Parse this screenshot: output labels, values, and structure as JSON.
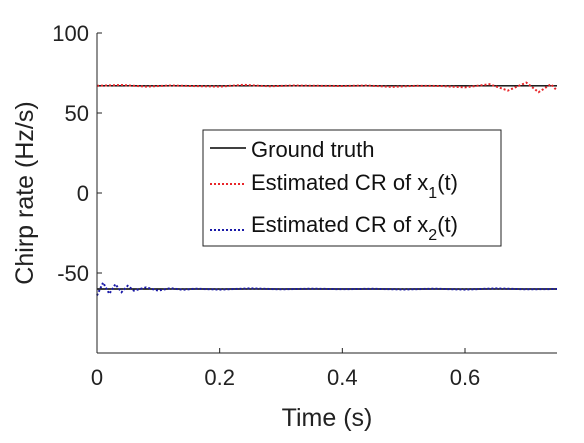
{
  "chart_data": {
    "type": "line",
    "xlabel": "Time (s)",
    "ylabel": "Chirp rate (Hz/s)",
    "xlim": [
      0,
      0.75
    ],
    "ylim": [
      -100,
      100
    ],
    "xticks": [
      0,
      0.2,
      0.4,
      0.6
    ],
    "xtick_labels": [
      "0",
      "0.2",
      "0.4",
      "0.6"
    ],
    "yticks": [
      -50,
      0,
      50,
      100
    ],
    "ytick_labels": [
      "-50",
      "0",
      "50",
      "100"
    ],
    "grid": false,
    "legend_position": "center-right",
    "series": [
      {
        "name": "Ground truth",
        "style": "solid",
        "color": "#000000",
        "x": [
          0,
          0.75
        ],
        "y": [
          67,
          67
        ],
        "x2": [
          0,
          0.75
        ],
        "y2": [
          -60,
          -60
        ]
      },
      {
        "name": "Estimated CR of x1(t)",
        "style": "dotted",
        "color": "#e8262a",
        "x": [
          0,
          0.04,
          0.08,
          0.12,
          0.16,
          0.2,
          0.24,
          0.28,
          0.32,
          0.36,
          0.4,
          0.44,
          0.48,
          0.52,
          0.56,
          0.6,
          0.64,
          0.67,
          0.7,
          0.72,
          0.74,
          0.75
        ],
        "y": [
          67,
          67.5,
          66.5,
          67.2,
          66.8,
          66.5,
          67.6,
          66.7,
          67.2,
          67,
          66.9,
          67.2,
          66.3,
          67,
          66.9,
          66,
          68,
          64,
          69,
          63,
          68,
          64
        ]
      },
      {
        "name": "Estimated CR of x2(t)",
        "style": "dotted",
        "color": "#1a1aa8",
        "x": [
          0,
          0.01,
          0.02,
          0.03,
          0.04,
          0.05,
          0.06,
          0.08,
          0.1,
          0.12,
          0.14,
          0.16,
          0.2,
          0.25,
          0.3,
          0.35,
          0.4,
          0.45,
          0.5,
          0.55,
          0.6,
          0.65,
          0.7,
          0.75
        ],
        "y": [
          -64,
          -56,
          -63,
          -57,
          -62,
          -58,
          -61,
          -59,
          -61,
          -59.5,
          -60.5,
          -59.8,
          -60.4,
          -59.6,
          -60.2,
          -59.8,
          -60.1,
          -59.9,
          -60.3,
          -59.8,
          -60.4,
          -59.6,
          -60.2,
          -60
        ]
      }
    ],
    "legend": [
      {
        "label_prefix": "Ground truth",
        "subscript": "",
        "label_suffix": ""
      },
      {
        "label_prefix": "Estimated CR of x",
        "subscript": "1",
        "label_suffix": "(t)"
      },
      {
        "label_prefix": "Estimated CR of x",
        "subscript": "2",
        "label_suffix": "(t)"
      }
    ]
  }
}
